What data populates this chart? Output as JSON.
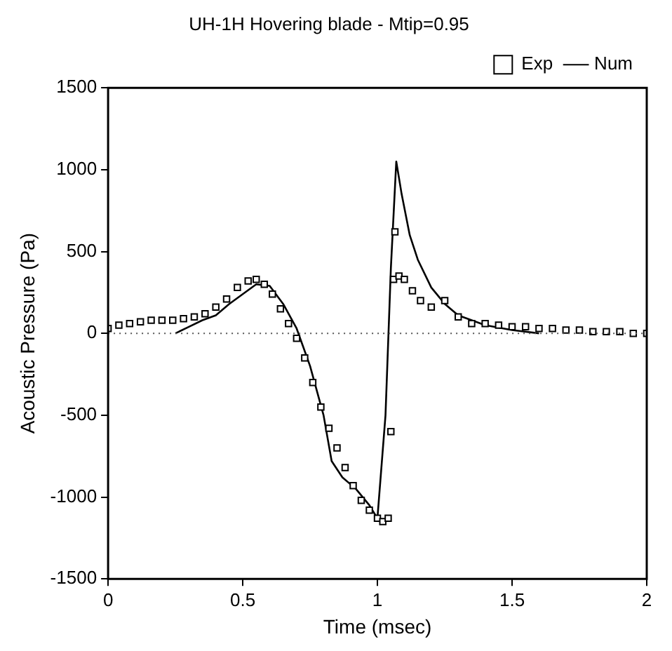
{
  "chart_data": {
    "type": "line",
    "title": "UH-1H Hovering blade - Mtip=0.95",
    "xlabel": "Time (msec)",
    "ylabel": "Acoustic Pressure (Pa)",
    "xlim": [
      0,
      2
    ],
    "xticks": [
      0,
      0.5,
      1,
      1.5,
      2
    ],
    "ylim": [
      -1500,
      1500
    ],
    "yticks": [
      -1500,
      -1000,
      -500,
      0,
      500,
      1000,
      1500
    ],
    "grid": false,
    "legend": "top right",
    "ref_lines": [
      {
        "axis": "y",
        "value": 0,
        "line_style": "dotted",
        "color": "#555555"
      }
    ],
    "series": [
      {
        "name": "Exp",
        "type": "scatter",
        "marker": "square",
        "color": "#000000",
        "x": [
          0,
          0.04,
          0.08,
          0.12,
          0.16,
          0.2,
          0.24,
          0.28,
          0.32,
          0.36,
          0.4,
          0.44,
          0.48,
          0.52,
          0.55,
          0.58,
          0.61,
          0.64,
          0.67,
          0.7,
          0.73,
          0.76,
          0.79,
          0.82,
          0.85,
          0.88,
          0.91,
          0.94,
          0.97,
          1.0,
          1.02,
          1.04,
          1.05,
          1.06,
          1.065,
          1.08,
          1.1,
          1.13,
          1.16,
          1.2,
          1.25,
          1.3,
          1.35,
          1.4,
          1.45,
          1.5,
          1.55,
          1.6,
          1.65,
          1.7,
          1.75,
          1.8,
          1.85,
          1.9,
          1.95,
          2.0
        ],
        "values": [
          30,
          50,
          60,
          70,
          80,
          80,
          80,
          90,
          100,
          120,
          160,
          210,
          280,
          320,
          330,
          300,
          240,
          150,
          60,
          -30,
          -150,
          -300,
          -450,
          -580,
          -700,
          -820,
          -930,
          -1020,
          -1080,
          -1130,
          -1150,
          -1130,
          -600,
          330,
          620,
          350,
          330,
          260,
          200,
          160,
          200,
          100,
          60,
          60,
          50,
          40,
          40,
          30,
          30,
          20,
          20,
          10,
          10,
          10,
          0,
          0
        ]
      },
      {
        "name": "Num",
        "type": "line",
        "marker": "none",
        "color": "#000000",
        "x": [
          0.25,
          0.3,
          0.35,
          0.4,
          0.45,
          0.5,
          0.55,
          0.6,
          0.65,
          0.7,
          0.75,
          0.8,
          0.83,
          0.87,
          0.92,
          0.97,
          1.0,
          1.03,
          1.05,
          1.07,
          1.09,
          1.12,
          1.15,
          1.2,
          1.25,
          1.3,
          1.4,
          1.5,
          1.6
        ],
        "values": [
          0,
          40,
          80,
          110,
          180,
          240,
          300,
          290,
          180,
          30,
          -200,
          -500,
          -780,
          -880,
          -950,
          -1050,
          -1130,
          -500,
          400,
          1050,
          850,
          600,
          450,
          280,
          180,
          110,
          50,
          20,
          0
        ]
      }
    ]
  }
}
